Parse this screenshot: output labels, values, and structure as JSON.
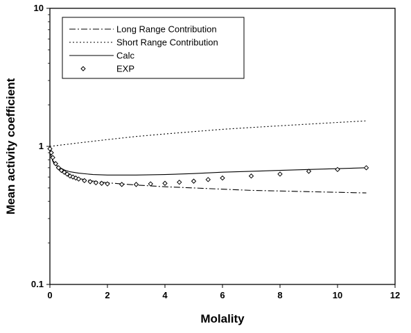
{
  "chart_data": {
    "type": "line",
    "title": "",
    "xlabel": "Molality",
    "ylabel": "Mean activity coefficient",
    "xlim": [
      0,
      12
    ],
    "ylim": [
      0.1,
      10
    ],
    "y_scale": "log",
    "x_ticks": [
      "0",
      "2",
      "4",
      "6",
      "8",
      "10",
      "12"
    ],
    "y_ticks": [
      "0.1",
      "1",
      "10"
    ],
    "grid": false,
    "legend": {
      "placement": "top-left",
      "boxed": true
    },
    "series": [
      {
        "name": "Long Range Contribution",
        "style": "dash-dot",
        "color": "#000000",
        "x": [
          0.001,
          0.02,
          0.05,
          0.1,
          0.2,
          0.3,
          0.5,
          0.7,
          1.0,
          1.5,
          2.0,
          2.5,
          3.0,
          4.0,
          5.0,
          6.0,
          7.0,
          8.0,
          9.0,
          10.0,
          11.0
        ],
        "y": [
          0.97,
          0.88,
          0.83,
          0.78,
          0.72,
          0.68,
          0.64,
          0.61,
          0.585,
          0.56,
          0.545,
          0.535,
          0.525,
          0.51,
          0.5,
          0.49,
          0.48,
          0.475,
          0.47,
          0.465,
          0.46
        ]
      },
      {
        "name": "Short Range Contribution",
        "style": "dotted",
        "color": "#000000",
        "x": [
          0.0,
          1.0,
          2.0,
          3.0,
          4.0,
          5.0,
          6.0,
          7.0,
          8.0,
          9.0,
          10.0,
          11.0
        ],
        "y": [
          1.0,
          1.06,
          1.12,
          1.18,
          1.23,
          1.28,
          1.33,
          1.37,
          1.41,
          1.45,
          1.49,
          1.53
        ]
      },
      {
        "name": "Calc",
        "style": "solid",
        "color": "#000000",
        "x": [
          0.001,
          0.02,
          0.05,
          0.1,
          0.2,
          0.3,
          0.5,
          0.7,
          1.0,
          1.5,
          2.0,
          3.0,
          4.0,
          5.0,
          6.0,
          7.0,
          8.0,
          9.0,
          10.0,
          11.0
        ],
        "y": [
          0.97,
          0.89,
          0.84,
          0.79,
          0.74,
          0.71,
          0.675,
          0.655,
          0.64,
          0.625,
          0.62,
          0.62,
          0.625,
          0.635,
          0.65,
          0.66,
          0.67,
          0.68,
          0.69,
          0.7
        ]
      },
      {
        "name": "EXP",
        "style": "markers",
        "marker": "diamond",
        "color": "#000000",
        "x": [
          0.0,
          0.05,
          0.1,
          0.2,
          0.3,
          0.4,
          0.5,
          0.6,
          0.7,
          0.8,
          0.9,
          1.0,
          1.2,
          1.4,
          1.6,
          1.8,
          2.0,
          2.5,
          3.0,
          3.5,
          4.0,
          4.5,
          5.0,
          5.5,
          6.0,
          7.0,
          8.0,
          9.0,
          10.0,
          11.0
        ],
        "y": [
          0.96,
          0.9,
          0.83,
          0.75,
          0.7,
          0.67,
          0.65,
          0.63,
          0.61,
          0.6,
          0.59,
          0.58,
          0.565,
          0.555,
          0.545,
          0.54,
          0.535,
          0.53,
          0.53,
          0.535,
          0.54,
          0.55,
          0.56,
          0.575,
          0.59,
          0.61,
          0.63,
          0.66,
          0.68,
          0.7
        ]
      }
    ]
  }
}
